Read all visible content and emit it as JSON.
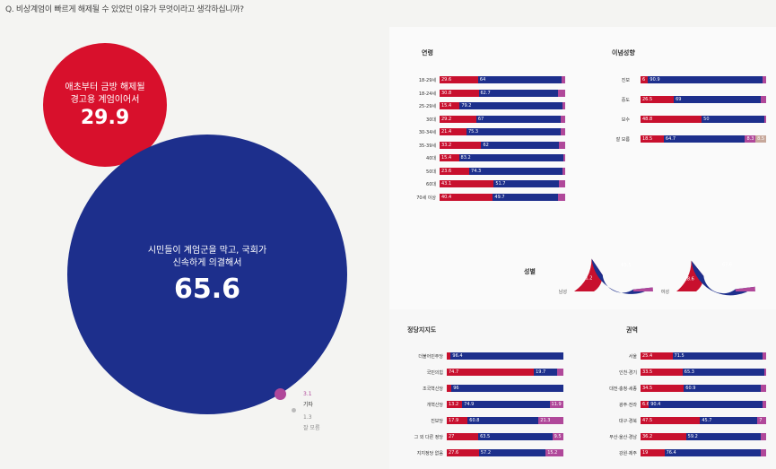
{
  "question": "Q. 비상계엄이 빠르게 해제될 수 있었던 이유가 무엇이라고 생각하십니까?",
  "colors": {
    "red": "#c8102e",
    "blue": "#1d2f8c",
    "pink": "#b0489a",
    "grey": "#c7a89b"
  },
  "chart_data": [
    {
      "type": "bubble",
      "items": [
        {
          "label": "애초부터 금방 해제될 경고용 계엄이어서",
          "value": 29.9,
          "color": "#d8102c"
        },
        {
          "label": "시민들이 계엄군을 막고, 국회가 신속하게 의결해서",
          "value": 65.6,
          "color": "#1d2f8c"
        },
        {
          "label": "기타",
          "value": 3.1,
          "color": "#b0489a"
        },
        {
          "label": "잘 모름",
          "value": 1.3,
          "color": "#bbbbbb"
        }
      ]
    },
    {
      "type": "bar",
      "title": "연령",
      "rows": [
        {
          "label": "18-29세",
          "values": [
            29.6,
            64.0,
            3.0
          ]
        },
        {
          "label": "18-24세",
          "values": [
            30.8,
            62.7,
            5.6
          ]
        },
        {
          "label": "25-29세",
          "values": [
            15.4,
            79.2,
            2.0
          ]
        },
        {
          "label": "30대",
          "values": [
            29.2,
            67.0,
            3.8
          ]
        },
        {
          "label": "30-34세",
          "values": [
            21.4,
            75.3,
            3.3
          ]
        },
        {
          "label": "35-39세",
          "values": [
            33.2,
            62.0,
            4.8
          ]
        },
        {
          "label": "40대",
          "values": [
            15.4,
            83.2,
            1.4
          ]
        },
        {
          "label": "50대",
          "values": [
            23.6,
            74.3,
            2.1
          ]
        },
        {
          "label": "60대",
          "values": [
            43.1,
            51.7,
            5.2
          ]
        },
        {
          "label": "70세 이상",
          "values": [
            40.4,
            49.7,
            5.1
          ]
        }
      ]
    },
    {
      "type": "bar",
      "title": "이념성향",
      "rows": [
        {
          "label": "진보",
          "values": [
            6.0,
            90.9,
            3.1
          ]
        },
        {
          "label": "중도",
          "values": [
            26.5,
            69.0,
            4.5
          ]
        },
        {
          "label": "보수",
          "values": [
            48.8,
            50.0,
            1.2
          ]
        },
        {
          "label": "잘 모름",
          "values": [
            18.5,
            64.7,
            8.3,
            8.5
          ]
        }
      ]
    },
    {
      "type": "pie",
      "title": "성별",
      "groups": [
        {
          "label": "남성",
          "values": [
            31.2,
            65.5
          ]
        },
        {
          "label": "여성",
          "values": [
            28.6,
            67.6
          ]
        }
      ]
    },
    {
      "type": "bar",
      "title": "정당지지도",
      "rows": [
        {
          "label": "더불어민주당",
          "values": [
            3.4,
            96.4
          ]
        },
        {
          "label": "국민의힘",
          "values": [
            74.7,
            19.7,
            5.6
          ]
        },
        {
          "label": "조국혁신당",
          "values": [
            4.0,
            96.0
          ]
        },
        {
          "label": "개혁신당",
          "values": [
            13.2,
            74.9,
            11.9
          ]
        },
        {
          "label": "진보당",
          "values": [
            17.9,
            60.8,
            21.3
          ]
        },
        {
          "label": "그 외 다른 정당",
          "values": [
            27.0,
            63.5,
            9.5
          ]
        },
        {
          "label": "지지정당 없음",
          "values": [
            27.6,
            57.2,
            15.2
          ]
        }
      ]
    },
    {
      "type": "bar",
      "title": "권역",
      "rows": [
        {
          "label": "서울",
          "values": [
            25.4,
            71.5,
            3.1
          ]
        },
        {
          "label": "인천·경기",
          "values": [
            33.5,
            65.3,
            1.2
          ]
        },
        {
          "label": "대전·충청·세종",
          "values": [
            34.5,
            60.9,
            4.6
          ]
        },
        {
          "label": "광주·전라",
          "values": [
            6.6,
            90.4,
            3.0
          ]
        },
        {
          "label": "대구·경북",
          "values": [
            47.5,
            45.7,
            7.0
          ]
        },
        {
          "label": "부산·울산·경남",
          "values": [
            36.2,
            59.2,
            4.6
          ]
        },
        {
          "label": "강원·제주",
          "values": [
            19.0,
            76.4,
            4.6
          ]
        }
      ]
    }
  ]
}
